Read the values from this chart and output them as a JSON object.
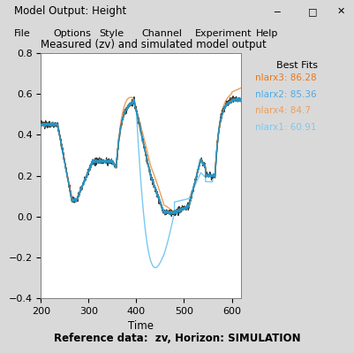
{
  "title": "Measured (zv) and simulated model output",
  "xlabel": "Time",
  "ylabel": "",
  "xlim": [
    200,
    620
  ],
  "ylim": [
    -0.4,
    0.8
  ],
  "yticks": [
    -0.4,
    -0.2,
    0.0,
    0.2,
    0.4,
    0.6,
    0.8
  ],
  "xticks": [
    200,
    300,
    400,
    500,
    600
  ],
  "legend_title": "Best Fits",
  "legend_entries": [
    {
      "label": "nlarx3: 86.28",
      "color": "#E8761A"
    },
    {
      "label": "nlarx2: 85.36",
      "color": "#4AABEA"
    },
    {
      "label": "nlarx4: 84.7",
      "color": "#E8A060"
    },
    {
      "label": "nlarx1: 60.91",
      "color": "#7AC8F0"
    }
  ],
  "bg_color": "#D9D9D9",
  "plot_bg_color": "#FFFFFF",
  "window_title": "Model Output: Height",
  "footer_text": "Reference data:  zv, Horizon: SIMULATION",
  "measured_color": "#333333",
  "nlarx3_color": "#D4600A",
  "nlarx2_color": "#2196C8",
  "nlarx4_color": "#E8A060",
  "nlarx1_color": "#7AC8F0",
  "menu_items": [
    "File",
    "Options",
    "Style",
    "Channel",
    "Experiment",
    "Help"
  ],
  "titlebar_color": "#F0F0F0",
  "menubar_color": "#F0F0F0"
}
